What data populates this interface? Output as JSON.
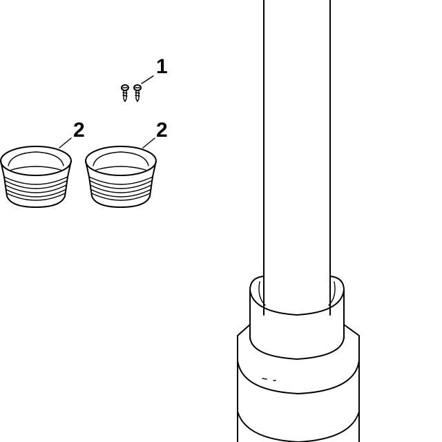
{
  "diagram": {
    "callouts": [
      {
        "id": "screws",
        "text": "1"
      },
      {
        "id": "ring-left",
        "text": "2"
      },
      {
        "id": "ring-right",
        "text": "2"
      }
    ],
    "line_color": "#000000",
    "background": "#ffffff"
  }
}
